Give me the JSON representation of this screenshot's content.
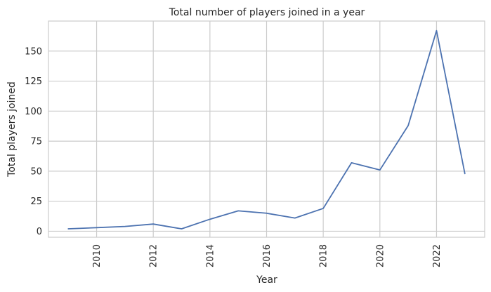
{
  "chart_data": {
    "type": "line",
    "title": "Total number of players joined in a year",
    "xlabel": "Year",
    "ylabel": "Total players joined",
    "x": [
      2009,
      2010,
      2011,
      2012,
      2013,
      2014,
      2015,
      2016,
      2017,
      2018,
      2019,
      2020,
      2021,
      2022,
      2023
    ],
    "series": [
      {
        "name": "",
        "values": [
          2,
          3,
          4,
          6,
          2,
          10,
          17,
          15,
          11,
          19,
          57,
          51,
          88,
          167,
          48
        ]
      }
    ],
    "xlim": [
      2008.3,
      2023.7
    ],
    "ylim": [
      -5,
      175
    ],
    "xticks": [
      "2010",
      "2012",
      "2014",
      "2016",
      "2018",
      "2020",
      "2022"
    ],
    "yticks": [
      "0",
      "25",
      "50",
      "75",
      "100",
      "125",
      "150"
    ],
    "xtick_rotation": "vertical",
    "grid": true,
    "legend": "none",
    "line_color": "#4c72b0"
  }
}
